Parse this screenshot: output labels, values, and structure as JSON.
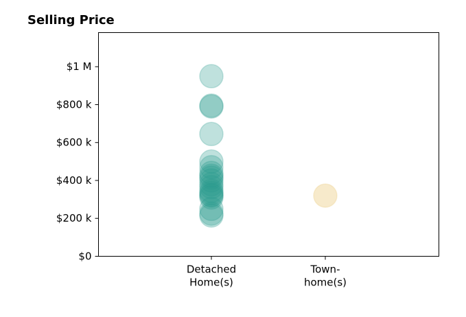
{
  "chart_data": {
    "type": "scatter",
    "title": "Selling Price",
    "categories": [
      "Detached\nHome(s)",
      "Town-\nhome(s)"
    ],
    "ylim": [
      0,
      1180000
    ],
    "y_ticks": [
      {
        "value": 0,
        "label": "$0"
      },
      {
        "value": 200000,
        "label": "$200 k"
      },
      {
        "value": 400000,
        "label": "$400 k"
      },
      {
        "value": 600000,
        "label": "$600 k"
      },
      {
        "value": 800000,
        "label": "$800 k"
      },
      {
        "value": 1000000,
        "label": "$1 M"
      }
    ],
    "grid": false,
    "series": [
      {
        "category": "Detached\nHome(s)",
        "color": "#2a9d8f",
        "values": [
          950000,
          790000,
          795000,
          645000,
          500000,
          470000,
          440000,
          425000,
          415000,
          400000,
          380000,
          365000,
          345000,
          335000,
          325000,
          320000,
          310000,
          250000,
          225000,
          215000
        ]
      },
      {
        "category": "Town-\nhome(s)",
        "color": "#e9c46a",
        "values": [
          320000
        ]
      }
    ]
  }
}
